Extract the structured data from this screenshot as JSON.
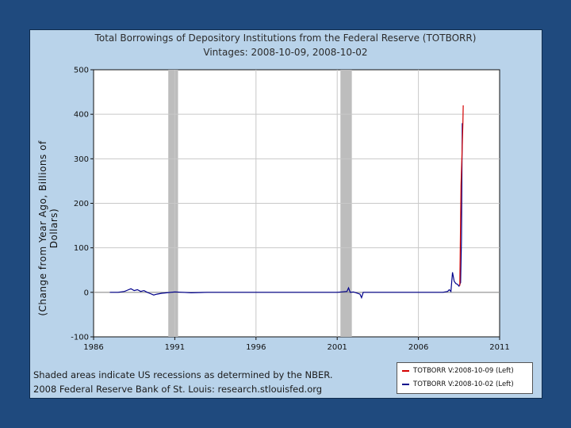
{
  "chart_data": {
    "type": "line",
    "title": "Total Borrowings of Depository Institutions from the Federal Reserve (TOTBORR)",
    "subtitle": "Vintages: 2008-10-09, 2008-10-02",
    "xlabel": "",
    "ylabel": "(Change from Year Ago, Billions of Dollars)",
    "xlim": [
      1986,
      2011
    ],
    "ylim": [
      -100,
      500
    ],
    "x_ticks": [
      1986,
      1991,
      1996,
      2001,
      2006,
      2011
    ],
    "x_tick_labels": [
      "1986",
      "1991",
      "1996",
      "2001",
      "2006",
      "2011"
    ],
    "y_ticks": [
      -100,
      0,
      100,
      200,
      300,
      400,
      500
    ],
    "y_tick_labels": [
      "-100",
      "0",
      "100",
      "200",
      "300",
      "400",
      "500"
    ],
    "grid": true,
    "recessions": [
      [
        1990.6,
        1991.2
      ],
      [
        2001.2,
        2001.9
      ]
    ],
    "series": [
      {
        "name": "TOTBORR V:2008-10-09 (Left)",
        "color": "#d40000",
        "x": [
          2008.55,
          2008.62,
          2008.7,
          2008.74,
          2008.76
        ],
        "y": [
          15,
          240,
          330,
          380,
          420
        ]
      },
      {
        "name": "TOTBORR V:2008-10-02 (Left)",
        "color": "#00008b",
        "x": [
          1987.0,
          1987.5,
          1987.9,
          1988.1,
          1988.3,
          1988.5,
          1988.7,
          1988.9,
          1989.1,
          1989.3,
          1989.5,
          1989.7,
          1989.9,
          1990.2,
          1990.5,
          1991.0,
          1991.5,
          1992.0,
          1993.0,
          1995.0,
          1997.0,
          1999.0,
          2000.0,
          2001.0,
          2001.6,
          2001.7,
          2001.8,
          2002.0,
          2002.4,
          2002.5,
          2002.6,
          2003.0,
          2004.0,
          2005.0,
          2006.0,
          2007.0,
          2007.5,
          2007.8,
          2007.9,
          2008.0,
          2008.1,
          2008.2,
          2008.3,
          2008.4,
          2008.5,
          2008.6,
          2008.65,
          2008.7
        ],
        "y": [
          0,
          0,
          2,
          5,
          8,
          4,
          6,
          2,
          4,
          0,
          -3,
          -6,
          -4,
          -2,
          -1,
          1,
          0,
          -1,
          0,
          0,
          0,
          0,
          0,
          0,
          2,
          10,
          0,
          1,
          -4,
          -12,
          0,
          0,
          0,
          0,
          0,
          0,
          0,
          2,
          6,
          2,
          45,
          25,
          20,
          18,
          14,
          22,
          120,
          380
        ]
      }
    ]
  },
  "notes": {
    "line1": "Shaded areas indicate US recessions as determined by the NBER.",
    "line2": "2008 Federal Reserve Bank of St. Louis: research.stlouisfed.org"
  },
  "colors": {
    "background": "#1f4a7e",
    "panel": "#b9d3ea",
    "plot": "#ffffff",
    "recession": "#bdbdbd",
    "grid": "#c8c8c8"
  }
}
